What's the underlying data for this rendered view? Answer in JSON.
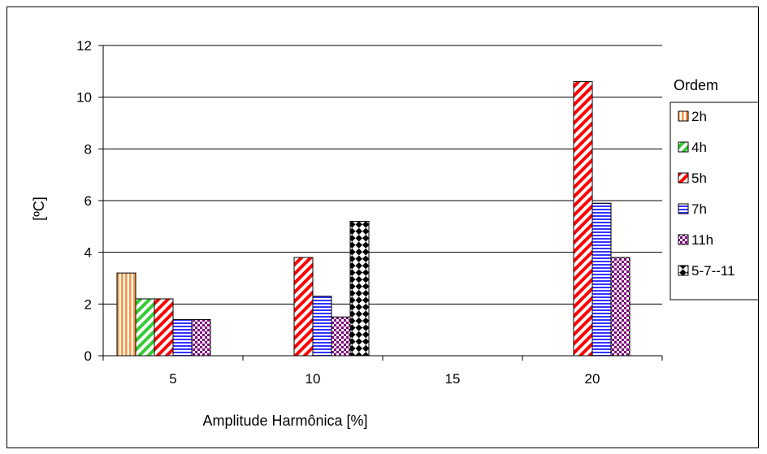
{
  "chart_data": {
    "type": "bar",
    "title": "",
    "xlabel": "Amplitude Harmônica [%]",
    "ylabel": "[ºC]",
    "ylim": [
      0,
      12
    ],
    "yticks": [
      0,
      2,
      4,
      6,
      8,
      10,
      12
    ],
    "categories": [
      "5",
      "10",
      "15",
      "20"
    ],
    "grid": "horizontal",
    "legend_title": "Ordem",
    "legend_position": "right",
    "series": [
      {
        "name": "2h",
        "values": [
          3.2,
          null,
          null,
          null
        ],
        "color": "#f79646",
        "pattern": "vertical-stripes"
      },
      {
        "name": "4h",
        "values": [
          2.2,
          null,
          null,
          null
        ],
        "color": "#33cc33",
        "pattern": "diagonal-stripes"
      },
      {
        "name": "5h",
        "values": [
          2.2,
          3.8,
          null,
          10.6
        ],
        "color": "#ff0000",
        "pattern": "diagonal-stripes"
      },
      {
        "name": "7h",
        "values": [
          1.4,
          2.3,
          null,
          5.9
        ],
        "color": "#3333ff",
        "pattern": "horizontal-stripes"
      },
      {
        "name": "11h",
        "values": [
          1.4,
          1.5,
          null,
          3.8
        ],
        "color": "#800080",
        "pattern": "checker"
      },
      {
        "name": "5-7--11",
        "values": [
          null,
          5.2,
          null,
          null
        ],
        "color": "#000000",
        "pattern": "diamond-checker"
      }
    ]
  }
}
